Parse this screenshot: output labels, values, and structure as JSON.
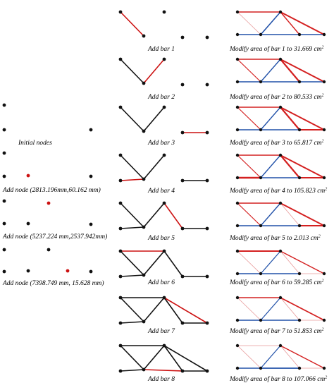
{
  "colors": {
    "node": "#111111",
    "new_node": "#cc1111",
    "bar": "#111111",
    "new_bar": "#cc1111",
    "highlight": "#cc1111",
    "tension": "#d42020",
    "compression": "#2050a8",
    "light": "#e89a9a"
  },
  "left_column": {
    "frames": [
      {
        "caption": "Initial nodes",
        "new_node": -1
      },
      {
        "caption": "Add node (2813.196mm,60.162 mm)",
        "new_node": 4
      },
      {
        "caption": "Add node (5237.224 mm,2537.942mm)",
        "new_node": 5
      },
      {
        "caption": "Add node (7398.749 mm, 15.628 mm)",
        "new_node": 6
      }
    ]
  },
  "middle_column": {
    "frames": [
      {
        "caption": "Add bar 1"
      },
      {
        "caption": "Add bar 2"
      },
      {
        "caption": "Add bar 3"
      },
      {
        "caption": "Add bar 4"
      },
      {
        "caption": "Add bar 5"
      },
      {
        "caption": "Add bar 6"
      },
      {
        "caption": "Add bar 7"
      },
      {
        "caption": "Add bar 8"
      }
    ]
  },
  "right_column": {
    "frames": [
      {
        "caption": "Modify area of bar 1 to 31.669 cm",
        "unit_sup": "2"
      },
      {
        "caption": "Modify area of bar 2 to 80.533 cm",
        "unit_sup": "2"
      },
      {
        "caption": "Modify area of bar 3 to 65.817 cm",
        "unit_sup": "2"
      },
      {
        "caption": "Modify area of bar 4 to 105.823 cm",
        "unit_sup": "2"
      },
      {
        "caption": "Modify area of bar 5 to 2.013 cm",
        "unit_sup": "2"
      },
      {
        "caption": "Modify area of bar 6 to 59.285 cm",
        "unit_sup": "2"
      },
      {
        "caption": "Modify area of bar 7 to 51.853 cm",
        "unit_sup": "2"
      },
      {
        "caption": "Modify area of bar 8 to 107.066 cm",
        "unit_sup": "2"
      }
    ]
  }
}
